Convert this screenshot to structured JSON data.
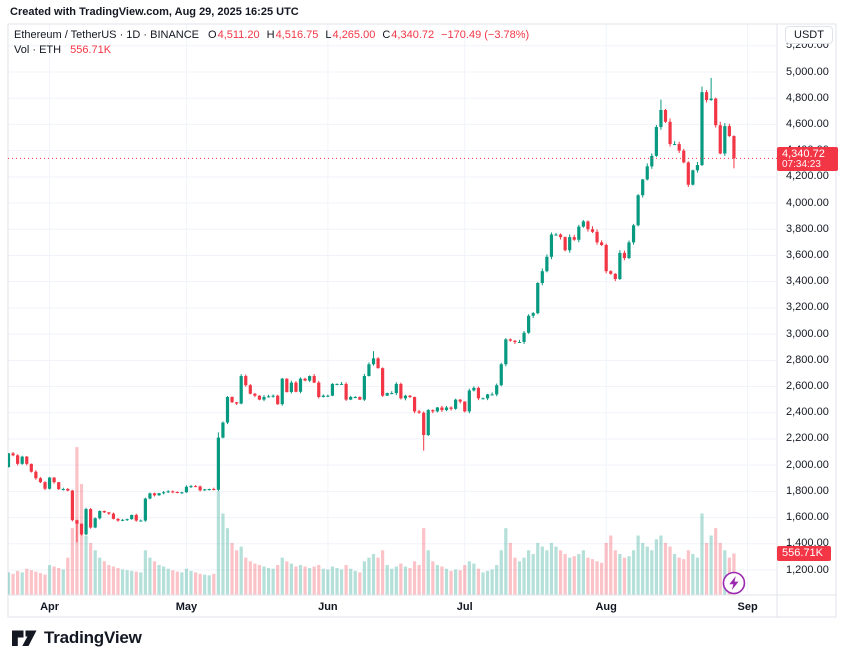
{
  "header": {
    "attribution": "Created with TradingView.com, Aug 29, 2025 16:25 UTC"
  },
  "legend": {
    "title": "Ethereum / TetherUS · 1D · BINANCE",
    "ohlc": [
      {
        "label": "O",
        "value": "4,511.20"
      },
      {
        "label": "H",
        "value": "4,516.75"
      },
      {
        "label": "L",
        "value": "4,265.00"
      },
      {
        "label": "C",
        "value": "4,340.72"
      }
    ],
    "change": "−170.49 (−3.78%)",
    "vol_label": "Vol · ETH",
    "vol_value": "556.71K"
  },
  "axis": {
    "currency_button": "USDT"
  },
  "price_label": {
    "value": "4,340.72",
    "countdown": "07:34:23"
  },
  "volume_label": {
    "value": "556.71K"
  },
  "footer": {
    "brand": "TradingView"
  },
  "colors": {
    "up": "#089981",
    "down": "#F23645",
    "vol_up": "rgba(8,153,129,0.3)",
    "vol_down": "rgba(242,54,69,0.3)",
    "accent": "#F23645",
    "text": "#131722",
    "grid": "#F0F3FA",
    "border": "#E0E3EB",
    "marker": "#9C27B0"
  },
  "chart_data": {
    "type": "candlestick",
    "title": "Ethereum / TetherUS",
    "interval": "1D",
    "exchange": "BINANCE",
    "quote_currency": "USDT",
    "legend_ohlc": {
      "open": 4511.2,
      "high": 4516.75,
      "low": 4265.0,
      "close": 4340.72,
      "change": -170.49,
      "change_pct": -3.78
    },
    "y_axis": {
      "min": 1200,
      "max": 5200,
      "step": 200,
      "unit": "USDT"
    },
    "x_axis": {
      "months": [
        {
          "label": "Apr",
          "day_index": 9
        },
        {
          "label": "May",
          "day_index": 39
        },
        {
          "label": "Jun",
          "day_index": 70
        },
        {
          "label": "Jul",
          "day_index": 100
        },
        {
          "label": "Aug",
          "day_index": 131
        },
        {
          "label": "Sep",
          "day_index": 162
        }
      ]
    },
    "first_open": 1985,
    "closes": [
      2090,
      2075,
      2010,
      2065,
      2010,
      1950,
      1900,
      1870,
      1820,
      1905,
      1870,
      1817,
      1818,
      1806,
      1580,
      1553,
      1472,
      1665,
      1524,
      1595,
      1650,
      1640,
      1630,
      1590,
      1577,
      1583,
      1588,
      1620,
      1577,
      1577,
      1745,
      1785,
      1770,
      1786,
      1793,
      1800,
      1795,
      1790,
      1793,
      1835,
      1840,
      1838,
      1808,
      1815,
      1818,
      1812,
      2210,
      2325,
      2520,
      2480,
      2470,
      2680,
      2610,
      2545,
      2530,
      2500,
      2520,
      2525,
      2530,
      2465,
      2660,
      2558,
      2630,
      2560,
      2660,
      2645,
      2680,
      2630,
      2520,
      2530,
      2530,
      2620,
      2620,
      2620,
      2500,
      2520,
      2520,
      2500,
      2680,
      2770,
      2815,
      2740,
      2530,
      2550,
      2550,
      2620,
      2510,
      2530,
      2520,
      2410,
      2400,
      2230,
      2420,
      2410,
      2440,
      2420,
      2440,
      2430,
      2500,
      2485,
      2410,
      2570,
      2590,
      2510,
      2510,
      2540,
      2540,
      2610,
      2770,
      2960,
      2950,
      2940,
      2940,
      3010,
      3140,
      3160,
      3390,
      3480,
      3590,
      3760,
      3760,
      3740,
      3640,
      3740,
      3720,
      3820,
      3860,
      3800,
      3780,
      3700,
      3680,
      3480,
      3460,
      3420,
      3620,
      3580,
      3700,
      3830,
      4060,
      4180,
      4280,
      4360,
      4580,
      4710,
      4620,
      4450,
      4450,
      4400,
      4310,
      4140,
      4250,
      4290,
      4846,
      4786,
      4797,
      4594,
      4378,
      4587,
      4511,
      4340.72
    ],
    "volumes_k": [
      300,
      280,
      320,
      300,
      350,
      330,
      310,
      290,
      270,
      400,
      380,
      360,
      340,
      500,
      900,
      2000,
      1500,
      800,
      700,
      600,
      500,
      450,
      400,
      380,
      360,
      340,
      330,
      320,
      310,
      300,
      600,
      500,
      450,
      400,
      380,
      350,
      330,
      310,
      300,
      350,
      320,
      300,
      280,
      270,
      260,
      280,
      1400,
      1100,
      900,
      700,
      600,
      650,
      500,
      450,
      420,
      400,
      380,
      360,
      350,
      400,
      500,
      450,
      420,
      380,
      400,
      380,
      360,
      380,
      400,
      350,
      340,
      380,
      360,
      340,
      400,
      350,
      320,
      300,
      450,
      500,
      550,
      500,
      600,
      400,
      350,
      380,
      420,
      380,
      360,
      450,
      400,
      900,
      600,
      450,
      400,
      380,
      350,
      320,
      340,
      330,
      400,
      450,
      420,
      350,
      300,
      320,
      340,
      400,
      600,
      900,
      700,
      500,
      450,
      500,
      600,
      550,
      700,
      650,
      600,
      700,
      650,
      600,
      550,
      500,
      520,
      550,
      600,
      500,
      480,
      450,
      430,
      700,
      800,
      600,
      550,
      500,
      520,
      600,
      800,
      700,
      650,
      600,
      750,
      800,
      700,
      650,
      550,
      500,
      480,
      600,
      550,
      500,
      1100,
      700,
      800,
      900,
      700,
      600,
      500,
      556.71
    ],
    "wick_overrides": {
      "15": {
        "low": 1411
      },
      "46": {
        "high": 2250
      },
      "80": {
        "high": 2870
      },
      "91": {
        "low": 2111
      },
      "143": {
        "high": 4790
      },
      "152": {
        "high": 4888
      },
      "154": {
        "high": 4955
      }
    },
    "last_candle": {
      "open": 4511.2,
      "high": 4516.75,
      "low": 4265.0,
      "close": 4340.72
    },
    "price_line": 4340.72,
    "last_volume_k": 556.71,
    "grid": true,
    "legend_position": "top-left"
  }
}
